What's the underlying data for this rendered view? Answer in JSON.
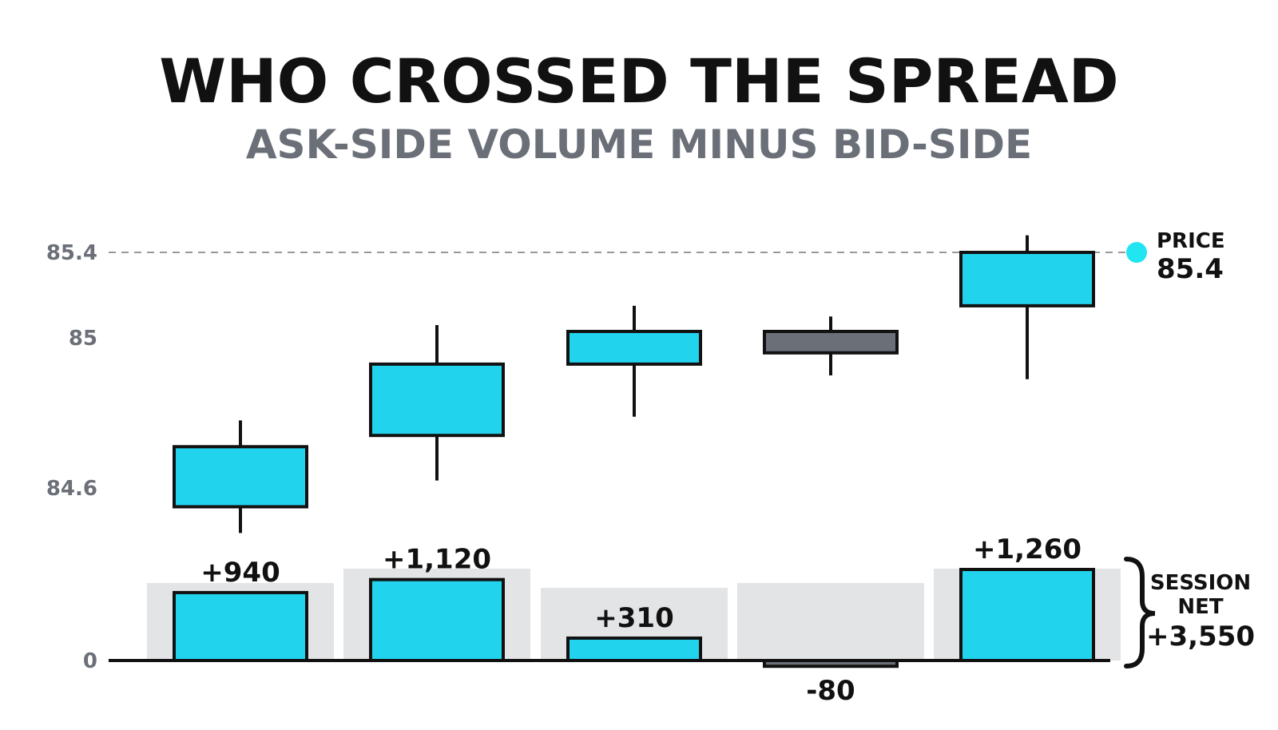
{
  "chart_data": [
    {
      "type": "candlestick",
      "title": "WHO CROSSED THE SPREAD",
      "subtitle": "ASK-SIDE VOLUME MINUS BID-SIDE",
      "y_ticks": [
        "85.4",
        "85",
        "84.6"
      ],
      "y_tick_values": [
        85.4,
        85.0,
        84.6
      ],
      "ylim": [
        84.5,
        85.5
      ],
      "candles": [
        {
          "open": 84.55,
          "close": 84.71,
          "high": 84.78,
          "low": 84.48,
          "direction": "up"
        },
        {
          "open": 84.74,
          "close": 84.93,
          "high": 85.06,
          "low": 84.62,
          "direction": "up"
        },
        {
          "open": 84.93,
          "close": 85.03,
          "high": 85.15,
          "low": 84.79,
          "direction": "up"
        },
        {
          "open": 85.03,
          "close": 84.96,
          "high": 85.1,
          "low": 84.9,
          "direction": "down"
        },
        {
          "open": 85.15,
          "close": 85.4,
          "high": 85.48,
          "low": 84.89,
          "direction": "up"
        }
      ],
      "reference_line": {
        "value": 85.4,
        "label": "PRICE",
        "value_label": "85.4"
      }
    },
    {
      "type": "bar",
      "y_ticks": [
        "0"
      ],
      "values": [
        940,
        1120,
        310,
        -80,
        1260
      ],
      "value_labels": [
        "+940",
        "+1,120",
        "+310",
        "-80",
        "+1,260"
      ],
      "ylim": [
        -200,
        1500
      ],
      "annotation": {
        "label": "SESSION\nNET",
        "value": "+3,550"
      }
    }
  ],
  "colors": {
    "up": "#22d3ee",
    "down": "#6b7078",
    "outline": "#111111",
    "band": "#e3e4e6",
    "subtitle": "#6b6f78",
    "axis_text": "#6b6f78",
    "marker": "#22e5f2"
  }
}
